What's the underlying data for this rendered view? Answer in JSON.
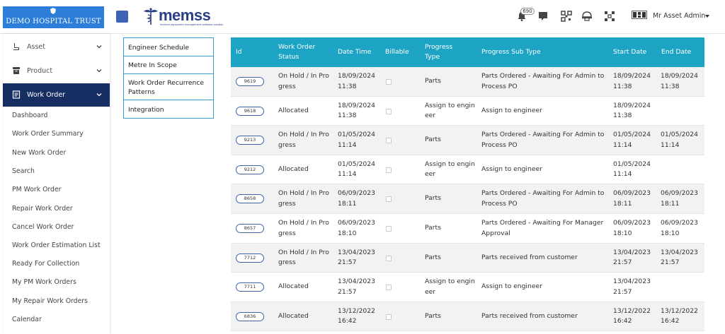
{
  "header": {
    "hospital_name": "DEMO HOSPITAL TRUST",
    "brand_word": "memss",
    "brand_tagline": "medical equipment management software solution",
    "notification_count": "690",
    "user_name": "Mr Asset Admin",
    "icons": [
      "bell-icon",
      "chat-icon",
      "qr-code-icon",
      "helmet-icon",
      "grid-qr-icon",
      "user-avatar"
    ]
  },
  "sidebar": {
    "top_items": [
      {
        "label": "Asset",
        "icon": "asset-icon"
      },
      {
        "label": "Product",
        "icon": "product-icon"
      },
      {
        "label": "Work Order",
        "icon": "work-order-icon"
      }
    ],
    "sub_items": [
      "Dashboard",
      "Work Order Summary",
      "New Work Order",
      "Search",
      "PM Work Order",
      "Repair Work Order",
      "Cancel Work Order",
      "Work Order Estimation List",
      "Ready For Collection",
      "My PM Work Orders",
      "My Repair Work Orders",
      "Calendar"
    ]
  },
  "midmenu": {
    "items": [
      "Engineer Schedule",
      "Metre In Scope",
      "Work Order Recurrence Patterns",
      "Integration"
    ]
  },
  "table": {
    "headers": {
      "id": "Id",
      "status": "Work Order Status",
      "datetime": "Date Time",
      "billable": "Billable",
      "progress_type": "Progress Type",
      "progress_sub_type": "Progress Sub Type",
      "start_date": "Start Date",
      "end_date": "End Date"
    },
    "rows": [
      {
        "id": "9619",
        "status": "On Hold / In Progress",
        "datetime": "18/09/2024 11:38",
        "progress_type": "Parts",
        "progress_sub_type": "Parts Ordered - Awaiting For Admin to Process PO",
        "start_date": "18/09/2024 11:38",
        "end_date": "18/09/2024 11:38"
      },
      {
        "id": "9618",
        "status": "Allocated",
        "datetime": "18/09/2024 11:38",
        "progress_type": "Assign to engineer",
        "progress_sub_type": "Assign to engineer",
        "start_date": "18/09/2024 11:38",
        "end_date": ""
      },
      {
        "id": "9213",
        "status": "On Hold / In Progress",
        "datetime": "01/05/2024 11:14",
        "progress_type": "Parts",
        "progress_sub_type": "Parts Ordered - Awaiting For Admin to Process PO",
        "start_date": "01/05/2024 11:14",
        "end_date": "01/05/2024 11:14"
      },
      {
        "id": "9212",
        "status": "Allocated",
        "datetime": "01/05/2024 11:14",
        "progress_type": "Assign to engineer",
        "progress_sub_type": "Assign to engineer",
        "start_date": "01/05/2024 11:14",
        "end_date": ""
      },
      {
        "id": "8658",
        "status": "On Hold / In Progress",
        "datetime": "06/09/2023 18:11",
        "progress_type": "Parts",
        "progress_sub_type": "Parts Ordered - Awaiting For Admin to Process PO",
        "start_date": "06/09/2023 18:11",
        "end_date": "06/09/2023 18:11"
      },
      {
        "id": "8657",
        "status": "On Hold / In Progress",
        "datetime": "06/09/2023 18:10",
        "progress_type": "Parts",
        "progress_sub_type": "Parts Ordered - Awaiting For Manager Approval",
        "start_date": "06/09/2023 18:10",
        "end_date": "06/09/2023 18:10"
      },
      {
        "id": "7712",
        "status": "On Hold / In Progress",
        "datetime": "13/04/2023 21:57",
        "progress_type": "Parts",
        "progress_sub_type": "Parts received from customer",
        "start_date": "13/04/2023 21:57",
        "end_date": "13/04/2023 21:57"
      },
      {
        "id": "7711",
        "status": "Allocated",
        "datetime": "13/04/2023 21:57",
        "progress_type": "Assign to engineer",
        "progress_sub_type": "Assign to engineer",
        "start_date": "13/04/2023 21:57",
        "end_date": ""
      },
      {
        "id": "6836",
        "status": "Allocated",
        "datetime": "13/12/2022 16:42",
        "progress_type": "Parts",
        "progress_sub_type": "Parts received from customer",
        "start_date": "13/12/2022 16:42",
        "end_date": "13/12/2022 16:42"
      }
    ]
  },
  "colors": {
    "table_header": "#1da4c5",
    "sidebar_active": "#172e63",
    "brand_blue": "#2a3f86",
    "hospital_logo_bg": "#2c7ed9"
  }
}
